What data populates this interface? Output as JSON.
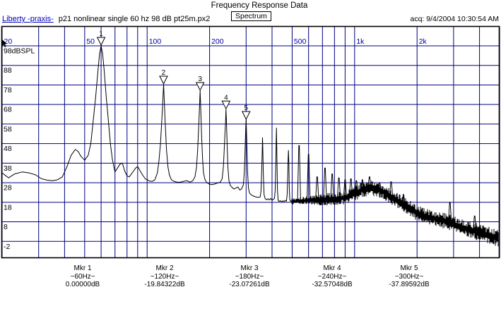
{
  "window": {
    "title": "Frequency Response Data",
    "acq_timestamp": "acq: 9/4/2004 10:30:54 AM"
  },
  "header": {
    "app_link": "Liberty -praxis-",
    "file_name": "p21 nonlinear single 60 hz 98 dB pt25m.px2",
    "view_button": "Spectrum"
  },
  "chart_data": {
    "type": "line",
    "title": "Spectrum",
    "x_scale": "log",
    "x_range_hz": [
      20,
      5000
    ],
    "y_unit": "dBSPL",
    "grid": true,
    "colors": {
      "grid": "#000080",
      "curve": "#000000",
      "x_labels": "#0000a0",
      "y_labels": "#000000",
      "frame": "#000000"
    },
    "x_gridlines": [
      20,
      30,
      40,
      50,
      60,
      70,
      80,
      90,
      100,
      200,
      300,
      400,
      500,
      600,
      700,
      800,
      900,
      1000,
      2000,
      3000,
      4000,
      5000
    ],
    "x_ticks": [
      {
        "f": 20,
        "label": "20"
      },
      {
        "f": 50,
        "label": "50"
      },
      {
        "f": 100,
        "label": "100"
      },
      {
        "f": 200,
        "label": "200"
      },
      {
        "f": 500,
        "label": "500"
      },
      {
        "f": 1000,
        "label": "1k"
      },
      {
        "f": 2000,
        "label": "2k"
      }
    ],
    "y_ticks": [
      {
        "db": 98,
        "label": "98dBSPL"
      },
      {
        "db": 88,
        "label": "88"
      },
      {
        "db": 78,
        "label": "78"
      },
      {
        "db": 68,
        "label": "68"
      },
      {
        "db": 58,
        "label": "58"
      },
      {
        "db": 48,
        "label": "48"
      },
      {
        "db": 38,
        "label": "38"
      },
      {
        "db": 28,
        "label": "28"
      },
      {
        "db": 18,
        "label": "18"
      },
      {
        "db": 8,
        "label": "8"
      },
      {
        "db": -2,
        "label": "-2"
      }
    ],
    "peak_markers": [
      {
        "n": "1",
        "f": 60,
        "db": 98.0
      },
      {
        "n": "2",
        "f": 120,
        "db": 78.16
      },
      {
        "n": "3",
        "f": 180,
        "db": 74.93
      },
      {
        "n": "4",
        "f": 240,
        "db": 65.43
      },
      {
        "n": "5",
        "f": 300,
        "db": 60.1
      }
    ],
    "main_path": [
      [
        20,
        33
      ],
      [
        21.5,
        30.5
      ],
      [
        23,
        32.5
      ],
      [
        25,
        33.5
      ],
      [
        27,
        33
      ],
      [
        29,
        32
      ],
      [
        31,
        30
      ],
      [
        33,
        29.3
      ],
      [
        35,
        29
      ],
      [
        37,
        29.5
      ],
      [
        39,
        31
      ],
      [
        41,
        36
      ],
      [
        43,
        42
      ],
      [
        45,
        45
      ],
      [
        46.5,
        44
      ],
      [
        48,
        41.5
      ],
      [
        50,
        39.5
      ],
      [
        52,
        42
      ],
      [
        53.5,
        48
      ],
      [
        55,
        60
      ],
      [
        56.5,
        72
      ],
      [
        58,
        86
      ],
      [
        59,
        94
      ],
      [
        60,
        98
      ],
      [
        61,
        94
      ],
      [
        62,
        86
      ],
      [
        63.5,
        72
      ],
      [
        65,
        60
      ],
      [
        66.5,
        48
      ],
      [
        68,
        40
      ],
      [
        70,
        33.5
      ],
      [
        72,
        35.5
      ],
      [
        74,
        37.5
      ],
      [
        76,
        38
      ],
      [
        78,
        34
      ],
      [
        80,
        31.5
      ],
      [
        82,
        31
      ],
      [
        84,
        32.5
      ],
      [
        86,
        34
      ],
      [
        88,
        35.5
      ],
      [
        90,
        36.3
      ],
      [
        92,
        34.5
      ],
      [
        95,
        32
      ],
      [
        98,
        30
      ],
      [
        100,
        29.5
      ],
      [
        103,
        28.8
      ],
      [
        106,
        28.7
      ],
      [
        109,
        29.5
      ],
      [
        112,
        33
      ],
      [
        114,
        39
      ],
      [
        116,
        48
      ],
      [
        118,
        62
      ],
      [
        119,
        70
      ],
      [
        120,
        78.16
      ],
      [
        121,
        70
      ],
      [
        122,
        60
      ],
      [
        124,
        45
      ],
      [
        126,
        36
      ],
      [
        128,
        32
      ],
      [
        131,
        29.5
      ],
      [
        134,
        28.8
      ],
      [
        138,
        28.4
      ],
      [
        142,
        28.2
      ],
      [
        146,
        28.4
      ],
      [
        151,
        28.8
      ],
      [
        156,
        29
      ],
      [
        161,
        28.3
      ],
      [
        166,
        29
      ],
      [
        170,
        31
      ],
      [
        173,
        36
      ],
      [
        175,
        44
      ],
      [
        177,
        55
      ],
      [
        179,
        68
      ],
      [
        180,
        74.93
      ],
      [
        181,
        68
      ],
      [
        183,
        52
      ],
      [
        185,
        40
      ],
      [
        187,
        33
      ],
      [
        190,
        29.5
      ],
      [
        194,
        28
      ],
      [
        199,
        27.3
      ],
      [
        205,
        27
      ],
      [
        211,
        27.3
      ],
      [
        218,
        27.8
      ],
      [
        225,
        28.3
      ],
      [
        230,
        30
      ],
      [
        233,
        36
      ],
      [
        235,
        44
      ],
      [
        237,
        52
      ],
      [
        239,
        60
      ],
      [
        240,
        65.43
      ],
      [
        241,
        60
      ],
      [
        243,
        48
      ],
      [
        245,
        36
      ],
      [
        248,
        29
      ],
      [
        252,
        26.5
      ],
      [
        257,
        25.5
      ],
      [
        262,
        24.8
      ],
      [
        268,
        25.3
      ],
      [
        274,
        25.8
      ],
      [
        280,
        24.2
      ],
      [
        286,
        25
      ],
      [
        291,
        27
      ],
      [
        294,
        33
      ],
      [
        296,
        42
      ],
      [
        298,
        52
      ],
      [
        299,
        57
      ],
      [
        300,
        60.1
      ],
      [
        301,
        56
      ],
      [
        303,
        44
      ],
      [
        305,
        33
      ],
      [
        308,
        25
      ],
      [
        312,
        22.5
      ],
      [
        318,
        21.8
      ],
      [
        325,
        21.2
      ],
      [
        333,
        20.8
      ],
      [
        342,
        20.5
      ],
      [
        351,
        20.8
      ],
      [
        354,
        24
      ],
      [
        357,
        36
      ],
      [
        359,
        46
      ],
      [
        360,
        51
      ],
      [
        361,
        46
      ],
      [
        363,
        33
      ],
      [
        366,
        22
      ],
      [
        370,
        20
      ],
      [
        375,
        19.3
      ],
      [
        381,
        19.8
      ],
      [
        388,
        19.2
      ],
      [
        394,
        20
      ],
      [
        400,
        19
      ],
      [
        406,
        19.5
      ],
      [
        411,
        20
      ],
      [
        414,
        24
      ],
      [
        417,
        38
      ],
      [
        419,
        50
      ],
      [
        420,
        56
      ],
      [
        421,
        50
      ],
      [
        423,
        36
      ],
      [
        425,
        24
      ],
      [
        428,
        19
      ],
      [
        433,
        18.4
      ],
      [
        439,
        18.8
      ],
      [
        445,
        18.2
      ],
      [
        451,
        18.8
      ],
      [
        457,
        18.3
      ],
      [
        463,
        19
      ],
      [
        469,
        18.5
      ],
      [
        473,
        22
      ],
      [
        476,
        32
      ],
      [
        478,
        40
      ],
      [
        480,
        44.5
      ],
      [
        482,
        38
      ],
      [
        484,
        26
      ],
      [
        487,
        19.5
      ],
      [
        492,
        18.3
      ],
      [
        496,
        18.8
      ],
      [
        500,
        18.5
      ]
    ],
    "spikes": [
      [
        540,
        47,
        18.5
      ],
      [
        600,
        42.5,
        18.5
      ],
      [
        660,
        31,
        19
      ],
      [
        720,
        35.5,
        19.5
      ],
      [
        780,
        32.5,
        19.5
      ],
      [
        840,
        30.5,
        20
      ],
      [
        900,
        29.5,
        20
      ],
      [
        960,
        30,
        20.5
      ],
      [
        1020,
        29,
        22.5
      ],
      [
        1090,
        29.5,
        24
      ],
      [
        1180,
        31,
        25
      ],
      [
        1320,
        28,
        24.5
      ],
      [
        1500,
        28.5,
        21
      ],
      [
        1720,
        22,
        17
      ],
      [
        2880,
        18,
        7.5
      ],
      [
        3790,
        11,
        3
      ]
    ],
    "noise_band": [
      [
        500,
        18.5,
        1.5
      ],
      [
        560,
        18.8,
        2
      ],
      [
        630,
        19,
        2.5
      ],
      [
        700,
        19.3,
        3
      ],
      [
        800,
        19.8,
        3.2
      ],
      [
        900,
        20.3,
        3.5
      ],
      [
        1000,
        22.5,
        3.8
      ],
      [
        1080,
        24.2,
        4
      ],
      [
        1160,
        25.2,
        4.2
      ],
      [
        1250,
        25,
        4.2
      ],
      [
        1350,
        23.8,
        4.2
      ],
      [
        1450,
        21.8,
        4
      ],
      [
        1550,
        20,
        4
      ],
      [
        1700,
        17.5,
        4
      ],
      [
        1850,
        15,
        4
      ],
      [
        2000,
        12.5,
        4
      ],
      [
        2150,
        11.2,
        4
      ],
      [
        2350,
        10,
        4
      ],
      [
        2600,
        9,
        4
      ],
      [
        2850,
        7.8,
        4.2
      ],
      [
        3100,
        6.3,
        4.2
      ],
      [
        3400,
        4.8,
        4.2
      ],
      [
        3700,
        3.5,
        4.2
      ],
      [
        4000,
        2.5,
        4.5
      ],
      [
        4300,
        1.5,
        4.5
      ],
      [
        4650,
        0.5,
        4.5
      ],
      [
        5000,
        -0.8,
        4.8
      ]
    ]
  },
  "marker_readouts": [
    {
      "name": "Mkr 1",
      "freq": "~60Hz~",
      "value": "0.00000dB"
    },
    {
      "name": "Mkr 2",
      "freq": "~120Hz~",
      "value": "-19.84322dB"
    },
    {
      "name": "Mkr 3",
      "freq": "~180Hz~",
      "value": "-23.07261dB"
    },
    {
      "name": "Mkr 4",
      "freq": "~240Hz~",
      "value": "-32.57048dB"
    },
    {
      "name": "Mkr 5",
      "freq": "~300Hz~",
      "value": "-37.89592dB"
    }
  ]
}
